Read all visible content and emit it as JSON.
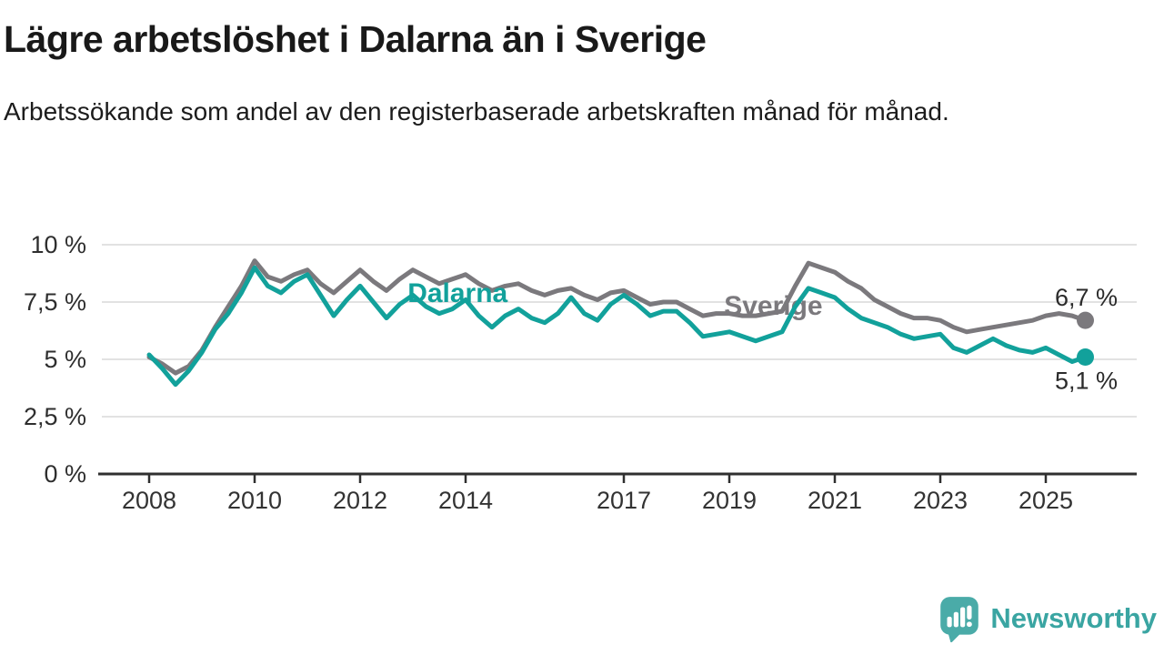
{
  "header": {
    "title": "Lägre arbetslöshet i Dalarna än i Sverige",
    "subtitle": "Arbetssökande som andel av den registerbaserade arbetskraften månad för månad."
  },
  "footer": {
    "brand": "Newsworthy",
    "brand_color": "#3aa5a2",
    "icon": "speech-bubble-bar-chart-icon"
  },
  "colors": {
    "dalarna_line": "#12a19b",
    "sverige_line": "#7b797d",
    "gridline": "#d9d9d9",
    "axis": "#2f2f2f",
    "text_dark": "#2b2b2b"
  },
  "chart_data": {
    "type": "line",
    "title": "Lägre arbetslöshet i Dalarna än i Sverige",
    "xlabel": "",
    "ylabel": "Arbetssökande som andel av den registerbaserade arbetskraften",
    "ylim": [
      0,
      10.5
    ],
    "xlim": [
      2007.1,
      2026.7
    ],
    "grid": true,
    "legend_position": "inline-labels",
    "x_ticks": [
      2008,
      2010,
      2012,
      2014,
      2017,
      2019,
      2021,
      2023,
      2025
    ],
    "y_ticks": [
      {
        "label": "10 %",
        "value": 10
      },
      {
        "label": "7,5 %",
        "value": 7.5
      },
      {
        "label": "5 %",
        "value": 5
      },
      {
        "label": "2,5 %",
        "value": 2.5
      },
      {
        "label": "0 %",
        "value": 0
      }
    ],
    "x": [
      2008,
      2008.25,
      2008.5,
      2008.75,
      2009,
      2009.25,
      2009.5,
      2009.75,
      2010,
      2010.25,
      2010.5,
      2010.75,
      2011,
      2011.25,
      2011.5,
      2011.75,
      2012,
      2012.25,
      2012.5,
      2012.75,
      2013,
      2013.25,
      2013.5,
      2013.75,
      2014,
      2014.25,
      2014.5,
      2014.75,
      2015,
      2015.25,
      2015.5,
      2015.75,
      2016,
      2016.25,
      2016.5,
      2016.75,
      2017,
      2017.25,
      2017.5,
      2017.75,
      2018,
      2018.25,
      2018.5,
      2018.75,
      2019,
      2019.25,
      2019.5,
      2019.75,
      2020,
      2020.25,
      2020.5,
      2020.75,
      2021,
      2021.25,
      2021.5,
      2021.75,
      2022,
      2022.25,
      2022.5,
      2022.75,
      2023,
      2023.25,
      2023.5,
      2023.75,
      2024,
      2024.25,
      2024.5,
      2024.75,
      2025,
      2025.25,
      2025.5,
      2025.75
    ],
    "series": [
      {
        "name": "Sverige",
        "color": "#7b797d",
        "end_label": "6,7 %",
        "end_value": 6.7,
        "end_label_position": "above",
        "label_anchor": {
          "x": 2018.9,
          "y": 6.95
        },
        "values": [
          5.1,
          4.8,
          4.4,
          4.7,
          5.4,
          6.4,
          7.3,
          8.2,
          9.3,
          8.6,
          8.4,
          8.7,
          8.9,
          8.3,
          7.9,
          8.4,
          8.9,
          8.4,
          8.0,
          8.5,
          8.9,
          8.6,
          8.3,
          8.5,
          8.7,
          8.3,
          8.0,
          8.2,
          8.3,
          8.0,
          7.8,
          8.0,
          8.1,
          7.8,
          7.6,
          7.9,
          8.0,
          7.7,
          7.4,
          7.5,
          7.5,
          7.2,
          6.9,
          7.0,
          7.0,
          6.9,
          6.9,
          7.0,
          7.1,
          8.2,
          9.2,
          9.0,
          8.8,
          8.4,
          8.1,
          7.6,
          7.3,
          7.0,
          6.8,
          6.8,
          6.7,
          6.4,
          6.2,
          6.3,
          6.4,
          6.5,
          6.6,
          6.7,
          6.9,
          7.0,
          6.9,
          6.7
        ]
      },
      {
        "name": "Dalarna",
        "color": "#12a19b",
        "end_label": "5,1 %",
        "end_value": 5.1,
        "end_label_position": "below",
        "label_anchor": {
          "x": 2012.9,
          "y": 7.5
        },
        "values": [
          5.2,
          4.6,
          3.9,
          4.5,
          5.3,
          6.3,
          7.0,
          7.9,
          9.0,
          8.2,
          7.9,
          8.4,
          8.7,
          7.8,
          6.9,
          7.6,
          8.2,
          7.5,
          6.8,
          7.4,
          7.8,
          7.3,
          7.0,
          7.2,
          7.6,
          6.9,
          6.4,
          6.9,
          7.2,
          6.8,
          6.6,
          7.0,
          7.7,
          7.0,
          6.7,
          7.4,
          7.8,
          7.4,
          6.9,
          7.1,
          7.1,
          6.6,
          6.0,
          6.1,
          6.2,
          6.0,
          5.8,
          6.0,
          6.2,
          7.3,
          8.1,
          7.9,
          7.7,
          7.2,
          6.8,
          6.6,
          6.4,
          6.1,
          5.9,
          6.0,
          6.1,
          5.5,
          5.3,
          5.6,
          5.9,
          5.6,
          5.4,
          5.3,
          5.5,
          5.2,
          4.9,
          5.1
        ]
      }
    ]
  }
}
